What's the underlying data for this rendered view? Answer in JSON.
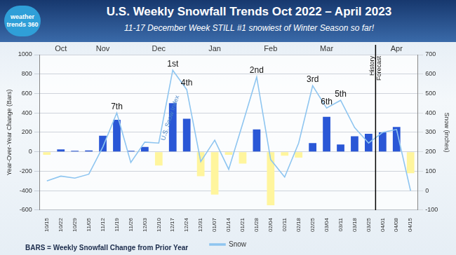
{
  "chart_data": {
    "type": "bar",
    "title": "U.S. Weekly Snowfall Trends Oct 2022 – April 2023",
    "subtitle": "11-17 December Week STILL #1 snowiest of Winter Season so far!",
    "logo": "weather trends 360",
    "footnote": "BARS = Weekly Snowfall Change from Prior Year",
    "y_label": "Year-Over-Year Change (Bars)",
    "y2_label": "Snow (inches)",
    "categories": [
      "10/15",
      "10/22",
      "10/29",
      "11/05",
      "11/12",
      "11/19",
      "11/26",
      "12/03",
      "12/10",
      "12/17",
      "12/24",
      "12/31",
      "01/07",
      "01/14",
      "01/21",
      "01/28",
      "02/04",
      "02/11",
      "02/18",
      "02/25",
      "03/04",
      "03/11",
      "03/18",
      "03/25",
      "04/01",
      "04/08",
      "04/15"
    ],
    "series": [
      {
        "type": "bar",
        "axis": "y",
        "values": [
          -30,
          25,
          10,
          15,
          165,
          330,
          10,
          50,
          -140,
          500,
          340,
          -250,
          -440,
          -30,
          -120,
          230,
          -550,
          -40,
          -60,
          90,
          360,
          75,
          160,
          185,
          200,
          255,
          -220
        ],
        "colors": [
          "#fff59d",
          "#2a57d6",
          "#2a57d6",
          "#2a57d6",
          "#2a57d6",
          "#2a57d6",
          "#2a57d6",
          "#2a57d6",
          "#fff59d",
          "#2a57d6",
          "#2a57d6",
          "#fff59d",
          "#fff59d",
          "#fff59d",
          "#fff59d",
          "#2a57d6",
          "#fff59d",
          "#fff59d",
          "#fff59d",
          "#2a57d6",
          "#2a57d6",
          "#2a57d6",
          "#2a57d6",
          "#2a57d6",
          "#2a57d6",
          "#2a57d6",
          "#fff59d"
        ]
      },
      {
        "name": "Snow",
        "type": "line",
        "axis": "y2",
        "color": "#8ec5f0",
        "marker": "none",
        "line_style": "solid",
        "values": [
          50,
          75,
          65,
          85,
          225,
          400,
          145,
          250,
          245,
          620,
          520,
          150,
          260,
          110,
          345,
          585,
          160,
          70,
          245,
          540,
          425,
          465,
          325,
          245,
          300,
          315,
          0
        ]
      }
    ],
    "ylim": [
      -600,
      1000
    ],
    "yticks": [
      -600,
      -400,
      -200,
      0,
      200,
      400,
      600,
      800,
      1000
    ],
    "y2lim": [
      -100,
      700
    ],
    "y2ticks": [
      -100,
      0,
      100,
      200,
      300,
      400,
      500,
      600,
      700
    ],
    "grid": true,
    "legend": "bottom",
    "data_labels": false,
    "month_labels": [
      {
        "text": "Oct",
        "x": "10/22"
      },
      {
        "text": "Nov",
        "x": "11/12"
      },
      {
        "text": "Dec",
        "x": "12/10"
      },
      {
        "text": "Jan",
        "x": "01/07"
      },
      {
        "text": "Feb",
        "x": "02/04"
      },
      {
        "text": "Mar",
        "x": "03/04"
      },
      {
        "text": "Apr",
        "x": "04/08"
      }
    ],
    "annotations": [
      {
        "text": "1st",
        "x": "12/17"
      },
      {
        "text": "2nd",
        "x": "01/28"
      },
      {
        "text": "3rd",
        "x": "02/25"
      },
      {
        "text": "4th",
        "x": "12/24"
      },
      {
        "text": "5th",
        "x": "03/11"
      },
      {
        "text": "6th",
        "x": "03/04"
      },
      {
        "text": "7th",
        "x": "11/19"
      }
    ],
    "line_label": {
      "text": "U.S. Snow Index",
      "x": "12/10"
    },
    "divider": {
      "after": "03/25",
      "labels": [
        "History",
        "Forecast"
      ]
    }
  }
}
